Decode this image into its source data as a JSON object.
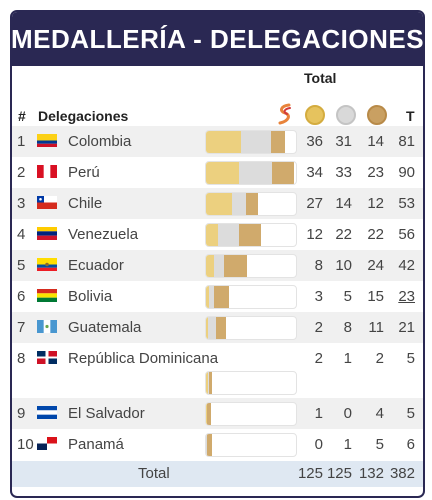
{
  "title": "MEDALLERÍA - DELEGACIONES",
  "header": {
    "total_label": "Total",
    "rank_label": "#",
    "delegation_label": "Delegaciones",
    "total_col_label": "T",
    "medal_icons": [
      "gold-medal-icon",
      "silver-medal-icon",
      "bronze-medal-icon"
    ]
  },
  "rows": [
    {
      "rank": "1",
      "name": "Colombia",
      "gold": "36",
      "silver": "31",
      "bronze": "14",
      "total": "81",
      "bar_fraction_of_max_total": 0.9,
      "bar_gold_fraction": 0.444,
      "bar_silver_fraction": 0.383,
      "bar_bronze_fraction": 0.173
    },
    {
      "rank": "2",
      "name": "Perú",
      "gold": "34",
      "silver": "33",
      "bronze": "23",
      "total": "90",
      "bar_fraction_of_max_total": 1.0,
      "bar_gold_fraction": 0.378,
      "bar_silver_fraction": 0.367,
      "bar_bronze_fraction": 0.255
    },
    {
      "rank": "3",
      "name": "Chile",
      "gold": "27",
      "silver": "14",
      "bronze": "12",
      "total": "53",
      "bar_fraction_of_max_total": 0.589,
      "bar_gold_fraction": 0.509,
      "bar_silver_fraction": 0.264,
      "bar_bronze_fraction": 0.227
    },
    {
      "rank": "4",
      "name": "Venezuela",
      "gold": "12",
      "silver": "22",
      "bronze": "22",
      "total": "56",
      "bar_fraction_of_max_total": 0.622,
      "bar_gold_fraction": 0.214,
      "bar_silver_fraction": 0.393,
      "bar_bronze_fraction": 0.393
    },
    {
      "rank": "5",
      "name": "Ecuador",
      "gold": "8",
      "silver": "10",
      "bronze": "24",
      "total": "42",
      "bar_fraction_of_max_total": 0.467,
      "bar_gold_fraction": 0.19,
      "bar_silver_fraction": 0.238,
      "bar_bronze_fraction": 0.572
    },
    {
      "rank": "6",
      "name": "Bolivia",
      "gold": "3",
      "silver": "5",
      "bronze": "15",
      "total": "23",
      "bar_fraction_of_max_total": 0.256,
      "bar_gold_fraction": 0.13,
      "bar_silver_fraction": 0.217,
      "bar_bronze_fraction": 0.653
    },
    {
      "rank": "7",
      "name": "Guatemala",
      "gold": "2",
      "silver": "8",
      "bronze": "11",
      "total": "21",
      "bar_fraction_of_max_total": 0.233,
      "bar_gold_fraction": 0.095,
      "bar_silver_fraction": 0.381,
      "bar_bronze_fraction": 0.524
    },
    {
      "rank": "8",
      "name": "República Dominicana",
      "gold": "2",
      "silver": "1",
      "bronze": "2",
      "total": "5",
      "bar_fraction_of_max_total": 0.056,
      "bar_gold_fraction": 0.4,
      "bar_silver_fraction": 0.2,
      "bar_bronze_fraction": 0.4
    },
    {
      "rank": "9",
      "name": "El Salvador",
      "gold": "1",
      "silver": "0",
      "bronze": "4",
      "total": "5",
      "bar_fraction_of_max_total": 0.056,
      "bar_gold_fraction": 0.2,
      "bar_silver_fraction": 0.0,
      "bar_bronze_fraction": 0.8
    },
    {
      "rank": "10",
      "name": "Panamá",
      "gold": "0",
      "silver": "1",
      "bronze": "5",
      "total": "6",
      "bar_fraction_of_max_total": 0.067,
      "bar_gold_fraction": 0.0,
      "bar_silver_fraction": 0.167,
      "bar_bronze_fraction": 0.833
    }
  ],
  "totals": {
    "label": "Total",
    "gold": "125",
    "silver": "125",
    "bronze": "132",
    "total": "382"
  },
  "colors": {
    "header_bg": "#2a2853",
    "gold": "#ecd07f",
    "silver": "#dcdcdc",
    "bronze": "#d0aa6c",
    "total_row_bg": "#dfe8f2"
  }
}
